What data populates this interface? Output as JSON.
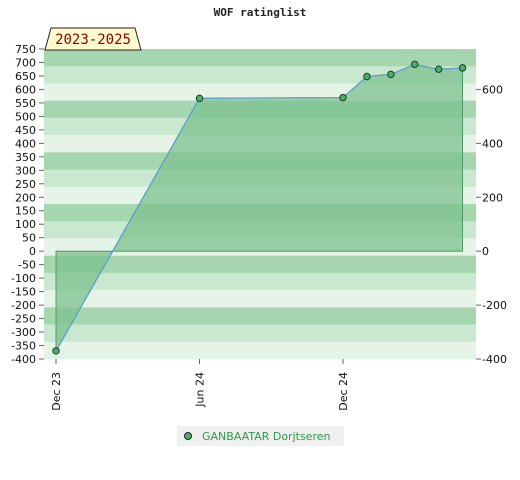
{
  "chart_data": {
    "type": "line",
    "title": "WOF ratinglist",
    "period_badge": "2023-2025",
    "x_ticks": [
      "Dec 23",
      "Jun 24",
      "Dec 24"
    ],
    "left_axis": {
      "ylim": [
        -400,
        750
      ],
      "ticks": [
        -400,
        -350,
        -300,
        -250,
        -200,
        -150,
        -100,
        -50,
        0,
        50,
        100,
        150,
        200,
        250,
        300,
        350,
        400,
        450,
        500,
        550,
        600,
        650,
        700,
        750
      ]
    },
    "right_axis": {
      "ticks": [
        -400,
        -200,
        0,
        200,
        400,
        600
      ]
    },
    "series": [
      {
        "name": "GANBAATAR Dorjtseren",
        "points": [
          {
            "date": "2023-12",
            "value": -370
          },
          {
            "date": "2024-06",
            "value": 567
          },
          {
            "date": "2024-12",
            "value": 570
          },
          {
            "date": "2025-01",
            "value": 648
          },
          {
            "date": "2025-02",
            "value": 656
          },
          {
            "date": "2025-03",
            "value": 693
          },
          {
            "date": "2025-04",
            "value": 675
          },
          {
            "date": "2025-05",
            "value": 680
          }
        ]
      }
    ],
    "colors": {
      "line": "#5aa0d0",
      "fill": "#7cc28f",
      "marker": "#4caf6a",
      "band_dark": "#a6d6b0",
      "band_light": "#e6f4e8"
    },
    "grid": true,
    "legend_position": "bottom-center"
  }
}
